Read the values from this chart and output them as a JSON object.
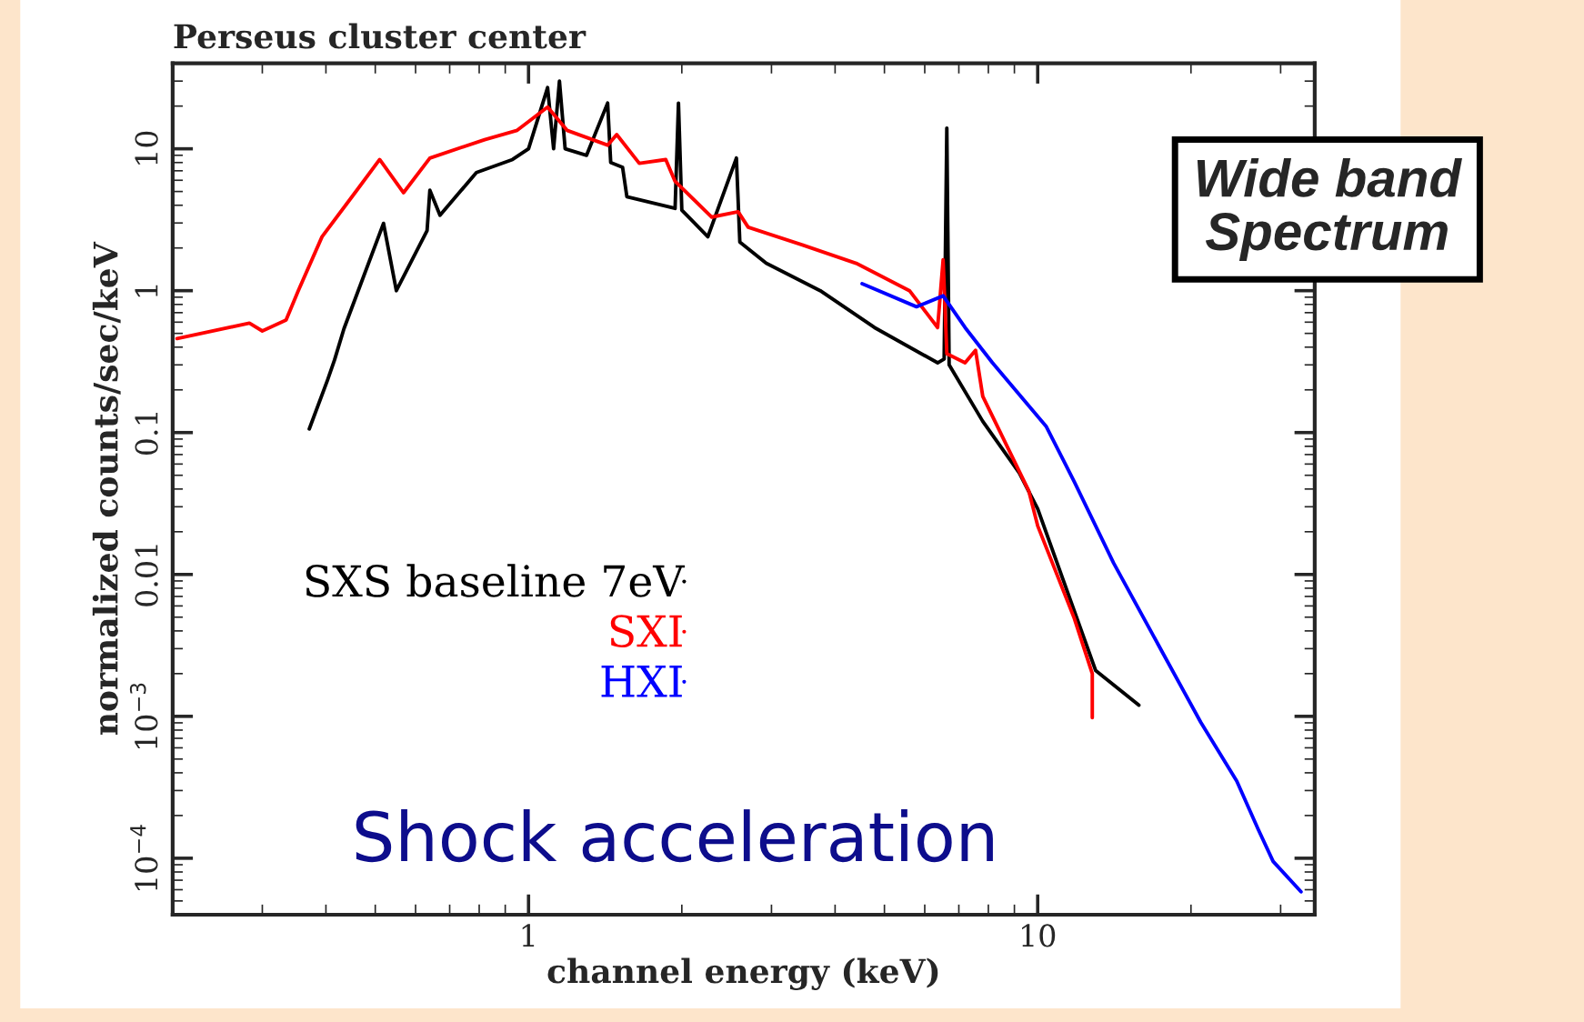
{
  "chart_data": {
    "type": "line",
    "title": "Perseus cluster center",
    "xlabel": "channel energy (keV)",
    "ylabel": "normalized counts/sec/keV",
    "log": "xy",
    "xlim": [
      0.2,
      35
    ],
    "ylim": [
      4e-05,
      40
    ],
    "xticks": [
      1,
      10
    ],
    "yticks": [
      {
        "value": 0.0001,
        "label": "10$^{−4}$"
      },
      {
        "value": 0.001,
        "label": "10$^{−3}$"
      },
      0.01,
      0.1,
      1,
      10
    ],
    "legend": "bottom left",
    "line_style": "solid",
    "annotations": [
      "Wide band Spectrum",
      "Shock acceleration"
    ],
    "series": [
      {
        "name": "SXS baseline 7eV",
        "color": "#000000",
        "x": [
          0.371,
          0.403,
          0.416,
          0.434,
          0.519,
          0.55,
          0.632,
          0.64,
          0.67,
          0.79,
          0.93,
          1.0,
          1.09,
          1.12,
          1.15,
          1.18,
          1.3,
          1.43,
          1.45,
          1.53,
          1.56,
          1.94,
          1.97,
          2.0,
          2.25,
          2.56,
          2.6,
          2.93,
          3.74,
          4.78,
          6.36,
          6.55,
          6.63,
          6.7,
          7.8,
          9.2,
          10,
          13.0,
          15.8
        ],
        "values": [
          0.106,
          0.235,
          0.326,
          0.54,
          2.98,
          1.0,
          2.65,
          5.1,
          3.4,
          6.8,
          8.4,
          10,
          27,
          10,
          30,
          10,
          9,
          21,
          8,
          7.4,
          4.6,
          3.8,
          21,
          3.7,
          2.4,
          8.6,
          2.2,
          1.56,
          1.0,
          0.55,
          0.31,
          0.33,
          14,
          0.3,
          0.12,
          0.052,
          0.029,
          0.0021,
          0.0012
        ]
      },
      {
        "name": "SXI",
        "color": "#ff0000",
        "x": [
          0.204,
          0.283,
          0.3,
          0.334,
          0.353,
          0.393,
          0.46,
          0.51,
          0.568,
          0.64,
          0.82,
          0.95,
          1.09,
          1.19,
          1.43,
          1.49,
          1.65,
          1.86,
          1.94,
          2.29,
          2.58,
          2.7,
          3.45,
          4.4,
          5.6,
          6.36,
          6.52,
          6.63,
          7.2,
          7.55,
          7.8,
          8.8,
          9.6,
          10,
          11.8,
          12.8,
          12.8
        ],
        "values": [
          0.46,
          0.59,
          0.52,
          0.62,
          1.0,
          2.4,
          5.1,
          8.4,
          4.9,
          8.6,
          11.6,
          13.5,
          19.7,
          13.5,
          10.6,
          12.6,
          7.9,
          8.4,
          5.9,
          3.3,
          3.6,
          2.8,
          2.1,
          1.56,
          1.0,
          0.55,
          1.65,
          0.36,
          0.31,
          0.38,
          0.18,
          0.074,
          0.039,
          0.022,
          0.0049,
          0.002,
          0.00098
        ]
      },
      {
        "name": "HXI",
        "color": "#0000ff",
        "x": [
          4.52,
          5.78,
          6.52,
          7.2,
          8.15,
          10.4,
          11.8,
          14.1,
          17.7,
          20.9,
          24.6,
          27.1,
          29,
          32.9
        ],
        "values": [
          1.12,
          0.77,
          0.92,
          0.55,
          0.31,
          0.11,
          0.045,
          0.012,
          0.0027,
          0.00091,
          0.00035,
          0.00016,
          9.5e-05,
          5.8e-05
        ]
      }
    ]
  }
}
